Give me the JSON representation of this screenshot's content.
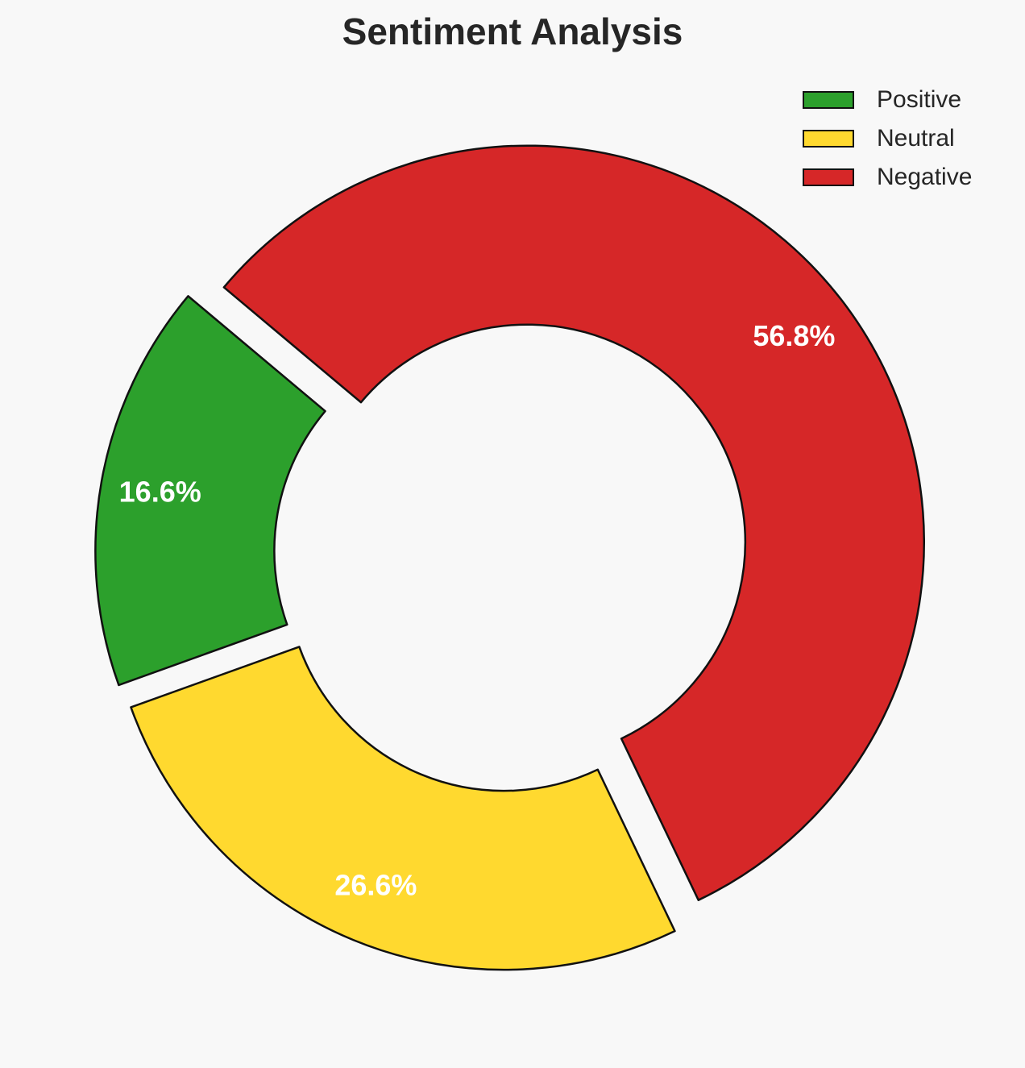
{
  "chart_data": {
    "type": "pie",
    "title": "Sentiment Analysis",
    "categories": [
      "Positive",
      "Neutral",
      "Negative"
    ],
    "values": [
      16.6,
      26.6,
      56.8
    ],
    "labels": [
      "16.6%",
      "26.6%",
      "56.8%"
    ],
    "colors": [
      "#2ca02c",
      "#ffd92f",
      "#d62728"
    ],
    "donut": true,
    "exploded": true,
    "legend": "top-right"
  }
}
